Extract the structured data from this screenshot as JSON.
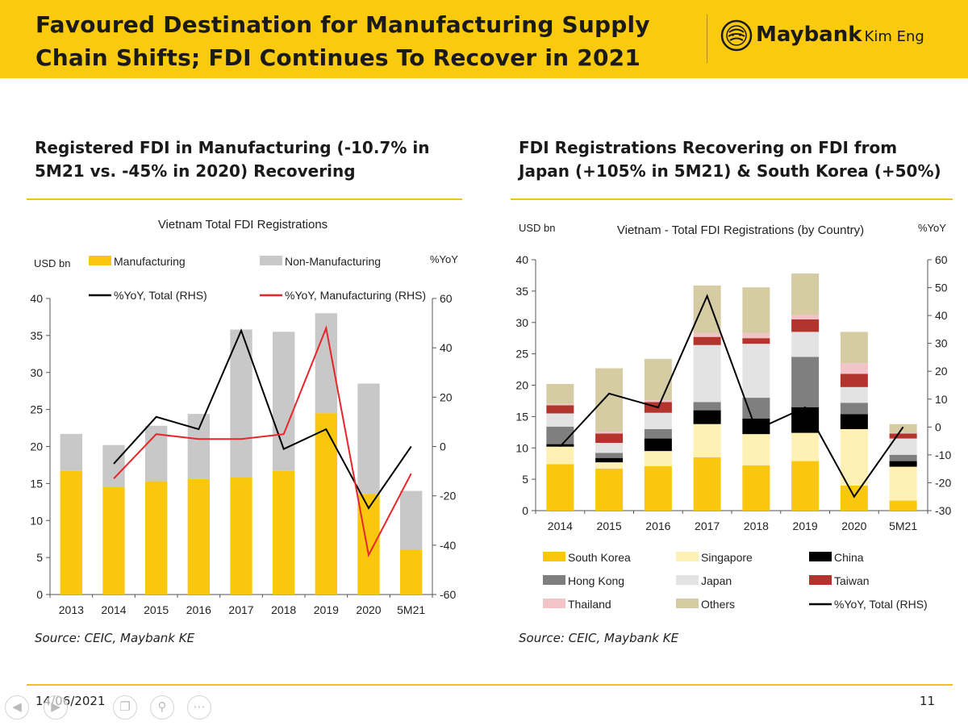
{
  "header": {
    "title_line1": "Favoured Destination for Manufacturing Supply",
    "title_line2": "Chain Shifts; FDI Continues To Recover in 2021",
    "brand": "Maybank",
    "brand_sub": "Kim Eng"
  },
  "left_panel": {
    "heading_line1": "Registered FDI in Manufacturing (-10.7% in",
    "heading_line2": "5M21 vs. -45% in 2020) Recovering",
    "source": "Source: CEIC, Maybank KE"
  },
  "right_panel": {
    "heading_line1": "FDI Registrations Recovering on FDI from",
    "heading_line2": "Japan (+105% in 5M21) & South Korea (+50%)",
    "source": "Source: CEIC, Maybank KE"
  },
  "footer": {
    "date": "14/06/2021",
    "page": "11"
  },
  "colors": {
    "header": "#f9ca0e",
    "accent": "#f2c21b"
  },
  "chart_data": [
    {
      "type": "bar",
      "title": "Vietnam Total FDI Registrations",
      "ylabel": "USD bn",
      "ylabel_right": "%YoY",
      "ylim": [
        0,
        40
      ],
      "yticks": [
        0,
        5,
        10,
        15,
        20,
        25,
        30,
        35,
        40
      ],
      "ylim_right": [
        -60,
        60
      ],
      "yticks_right": [
        -60,
        -40,
        -20,
        0,
        20,
        40,
        60
      ],
      "categories": [
        "2013",
        "2014",
        "2015",
        "2016",
        "2017",
        "2018",
        "2019",
        "2020",
        "5M21"
      ],
      "series": [
        {
          "name": "Manufacturing",
          "kind": "bar",
          "color": "#f9c80e",
          "values": [
            16.7,
            14.5,
            15.3,
            15.6,
            15.8,
            16.7,
            24.5,
            13.6,
            6.1
          ]
        },
        {
          "name": "Non-Manufacturing",
          "kind": "bar",
          "color": "#c8c8c8",
          "values": [
            5.0,
            5.7,
            7.5,
            8.8,
            20.0,
            18.8,
            13.5,
            14.9,
            7.9
          ]
        },
        {
          "name": "%YoY, Total (RHS)",
          "kind": "line",
          "axis": "right",
          "color": "#000000",
          "values": [
            null,
            -7,
            12,
            7,
            47,
            -1,
            7,
            -25,
            0
          ]
        },
        {
          "name": "%YoY, Manufacturing (RHS)",
          "kind": "line",
          "axis": "right",
          "color": "#e8262a",
          "values": [
            null,
            -13,
            5,
            3,
            3,
            5,
            48,
            -44,
            -11
          ]
        }
      ]
    },
    {
      "type": "bar",
      "title": "Vietnam - Total FDI Registrations (by Country)",
      "ylabel": "USD bn",
      "ylabel_right": "%YoY",
      "ylim": [
        0,
        40
      ],
      "yticks": [
        0,
        5,
        10,
        15,
        20,
        25,
        30,
        35,
        40
      ],
      "ylim_right": [
        -30,
        60
      ],
      "yticks_right": [
        -30,
        -20,
        -10,
        0,
        10,
        20,
        30,
        40,
        50,
        60
      ],
      "categories": [
        "2014",
        "2015",
        "2016",
        "2017",
        "2018",
        "2019",
        "2020",
        "5M21"
      ],
      "series": [
        {
          "name": "South Korea",
          "kind": "bar",
          "color": "#f9c80e",
          "values": [
            7.4,
            6.7,
            7.1,
            8.5,
            7.2,
            7.9,
            4.0,
            1.6
          ]
        },
        {
          "name": "Singapore",
          "kind": "bar",
          "color": "#fff0b3",
          "values": [
            2.8,
            1.0,
            2.4,
            5.3,
            5.0,
            4.5,
            9.0,
            5.4
          ]
        },
        {
          "name": "China",
          "kind": "bar",
          "color": "#000000",
          "values": [
            0.4,
            0.7,
            2.0,
            2.2,
            2.5,
            4.1,
            2.4,
            0.9
          ]
        },
        {
          "name": "Hong Kong",
          "kind": "bar",
          "color": "#7f7f7f",
          "values": [
            2.8,
            0.8,
            1.5,
            1.3,
            3.3,
            8.0,
            1.8,
            1.0
          ]
        },
        {
          "name": "Japan",
          "kind": "bar",
          "color": "#e3e3e3",
          "values": [
            2.1,
            1.6,
            2.6,
            9.1,
            8.6,
            4.0,
            2.5,
            2.6
          ]
        },
        {
          "name": "Taiwan",
          "kind": "bar",
          "color": "#b3332d",
          "values": [
            1.3,
            1.5,
            1.7,
            1.3,
            0.9,
            2.0,
            2.1,
            0.8
          ]
        },
        {
          "name": "Thailand",
          "kind": "bar",
          "color": "#f2c4c8",
          "values": [
            0.2,
            0.3,
            0.3,
            0.6,
            0.8,
            0.7,
            1.7,
            0.1
          ]
        },
        {
          "name": "Others",
          "kind": "bar",
          "color": "#d6cca3",
          "values": [
            3.2,
            10.1,
            6.6,
            7.6,
            7.3,
            6.6,
            5.0,
            1.4
          ]
        },
        {
          "name": "%YoY, Total (RHS)",
          "kind": "line",
          "axis": "right",
          "color": "#000000",
          "values": [
            -7,
            12,
            7,
            47,
            -1,
            7,
            -25,
            0
          ]
        }
      ]
    }
  ]
}
